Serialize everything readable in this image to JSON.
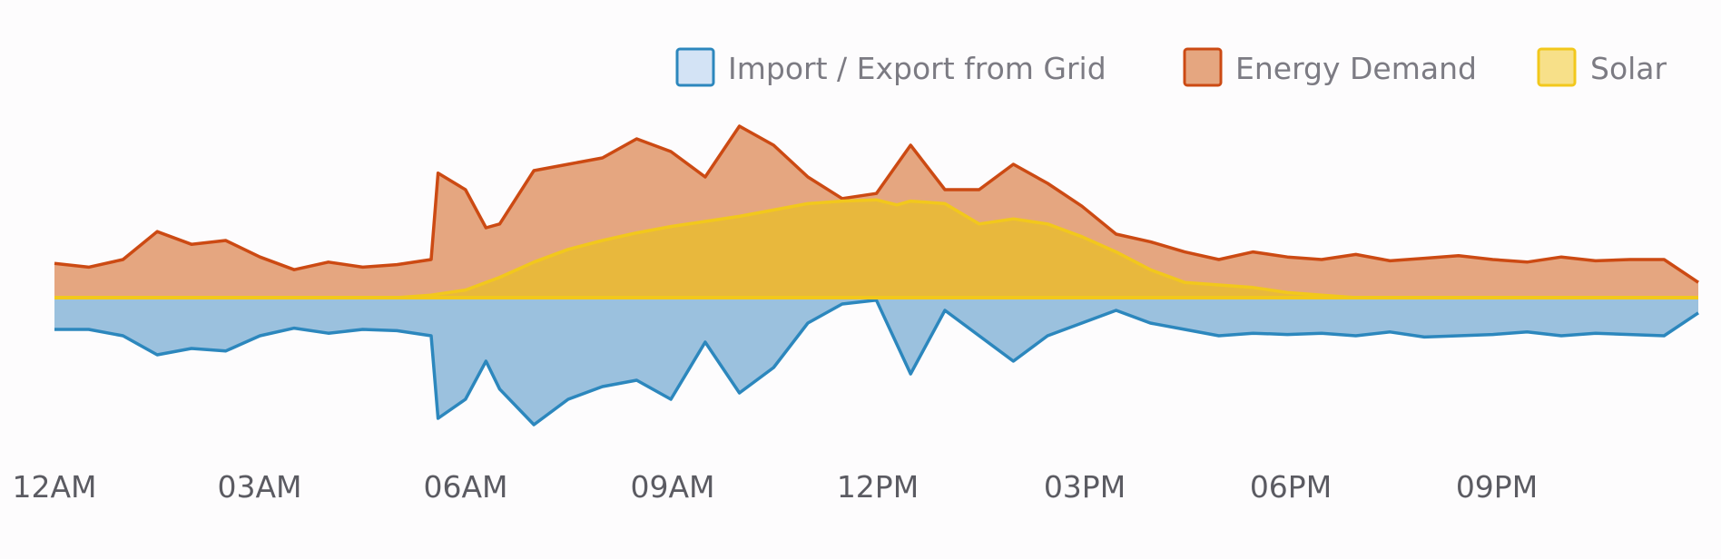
{
  "colors": {
    "background": "#fdfcfd",
    "grid_fill": "#9bc1de",
    "grid_stroke": "#2c87bd",
    "grid_legend_fill": "#d3e3f5",
    "demand_fill": "#e5a680",
    "demand_stroke": "#cc4a13",
    "solar_fill": "#e8b83d",
    "solar_stroke": "#f2c81c",
    "solar_legend_fill": "#f7e089",
    "tick_text": "#5b5b62",
    "legend_text": "#7c7b83"
  },
  "chart_data": {
    "type": "area",
    "title": "",
    "xlabel": "",
    "ylabel": "",
    "x_unit": "hours since midnight",
    "x_range": [
      0,
      24
    ],
    "y_range": [
      -1.15,
      1.5
    ],
    "grid": false,
    "legend_position": "top-right",
    "legend": [
      {
        "name": "Import / Export from Grid",
        "icon": "square-swatch-blue"
      },
      {
        "name": "Energy Demand",
        "icon": "square-swatch-orange"
      },
      {
        "name": "Solar",
        "icon": "square-swatch-yellow"
      }
    ],
    "x_ticks": [
      {
        "label": "12AM",
        "x": 0
      },
      {
        "label": "03AM",
        "x": 3
      },
      {
        "label": "06AM",
        "x": 6
      },
      {
        "label": "09AM",
        "x": 9
      },
      {
        "label": "12PM",
        "x": 12
      },
      {
        "label": "03PM",
        "x": 15
      },
      {
        "label": "06PM",
        "x": 18
      },
      {
        "label": "09PM",
        "x": 21
      }
    ],
    "series": [
      {
        "name": "Energy Demand",
        "x": [
          0,
          0.5,
          1,
          1.5,
          2,
          2.5,
          3,
          3.5,
          4,
          4.5,
          5,
          5.5,
          5.6,
          6,
          6.3,
          6.5,
          7,
          7.5,
          8,
          8.5,
          9,
          9.5,
          10,
          10.5,
          11,
          11.5,
          12,
          12.5,
          13,
          13.5,
          14,
          14.5,
          15,
          15.5,
          16,
          16.5,
          17,
          17.5,
          18,
          18.5,
          19,
          19.5,
          20,
          20.5,
          21,
          21.5,
          22,
          22.5,
          23,
          23.5,
          24
        ],
        "values": [
          0.27,
          0.24,
          0.3,
          0.52,
          0.42,
          0.45,
          0.32,
          0.22,
          0.28,
          0.24,
          0.26,
          0.3,
          0.98,
          0.85,
          0.55,
          0.58,
          1.0,
          1.05,
          1.1,
          1.25,
          1.15,
          0.95,
          1.35,
          1.2,
          0.95,
          0.78,
          0.82,
          1.2,
          0.85,
          0.85,
          1.05,
          0.9,
          0.72,
          0.5,
          0.44,
          0.36,
          0.3,
          0.36,
          0.32,
          0.3,
          0.34,
          0.29,
          0.31,
          0.33,
          0.3,
          0.28,
          0.32,
          0.29,
          0.3,
          0.3,
          0.12
        ]
      },
      {
        "name": "Solar",
        "x": [
          0,
          5,
          5.5,
          6,
          6.5,
          7,
          7.5,
          8,
          8.5,
          9,
          9.5,
          10,
          10.5,
          11,
          11.5,
          12,
          12.3,
          12.5,
          13,
          13.5,
          14,
          14.5,
          15,
          15.5,
          16,
          16.5,
          17,
          17.5,
          18,
          18.5,
          19,
          24
        ],
        "values": [
          0.0,
          0.0,
          0.02,
          0.06,
          0.16,
          0.28,
          0.38,
          0.45,
          0.51,
          0.56,
          0.6,
          0.64,
          0.69,
          0.74,
          0.76,
          0.77,
          0.73,
          0.76,
          0.74,
          0.58,
          0.62,
          0.58,
          0.48,
          0.36,
          0.22,
          0.12,
          0.1,
          0.08,
          0.04,
          0.02,
          0.0,
          0.0
        ]
      },
      {
        "name": "Import / Export from Grid",
        "x": [
          0,
          0.5,
          1,
          1.5,
          2,
          2.5,
          3,
          3.5,
          4,
          4.5,
          5,
          5.5,
          5.6,
          6,
          6.3,
          6.5,
          7,
          7.5,
          8,
          8.5,
          9,
          9.5,
          10,
          10.5,
          11,
          11.5,
          12,
          12.5,
          13,
          13.5,
          14,
          14.5,
          15,
          15.5,
          16,
          16.5,
          17,
          17.5,
          18,
          18.5,
          19,
          19.5,
          20,
          20.5,
          21,
          21.5,
          22,
          22.5,
          23,
          23.5,
          24
        ],
        "values": [
          -0.25,
          -0.25,
          -0.3,
          -0.45,
          -0.4,
          -0.42,
          -0.3,
          -0.24,
          -0.28,
          -0.25,
          -0.26,
          -0.3,
          -0.95,
          -0.8,
          -0.5,
          -0.72,
          -1.0,
          -0.8,
          -0.7,
          -0.65,
          -0.8,
          -0.35,
          -0.75,
          -0.55,
          -0.2,
          -0.05,
          -0.02,
          -0.6,
          -0.1,
          -0.3,
          -0.5,
          -0.3,
          -0.2,
          -0.1,
          -0.2,
          -0.25,
          -0.3,
          -0.28,
          -0.29,
          -0.28,
          -0.3,
          -0.27,
          -0.31,
          -0.3,
          -0.29,
          -0.27,
          -0.3,
          -0.28,
          -0.29,
          -0.3,
          -0.12
        ]
      }
    ]
  }
}
